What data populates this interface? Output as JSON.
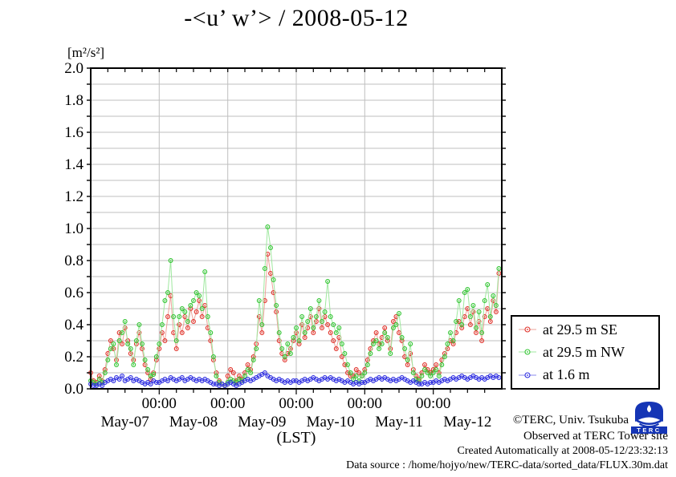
{
  "page": {
    "title": "-<u’ w’> / 2008-05-12"
  },
  "axes": {
    "unit_label": "[m²/s²]",
    "xlabel": "(LST)"
  },
  "legend": {
    "items": [
      {
        "label": "at 29.5 m SE",
        "marker_color": "#e03028",
        "line_color": "#eda39a"
      },
      {
        "label": "at 29.5 m NW",
        "marker_color": "#2fc42f",
        "line_color": "#9fe89f"
      },
      {
        "label": "at 1.6 m",
        "marker_color": "#2a2ae0",
        "line_color": "#8a8aee"
      }
    ]
  },
  "annotations": {
    "copyright": "©TERC, Univ. Tsukuba",
    "observed": "Observed at TERC Tower site",
    "created": "Created Automatically at 2008-05-12/23:32:13",
    "datasource": "Data source : /home/hojyo/new/TERC-data/sorted_data/FLUX.30m.dat"
  },
  "logo": {
    "text": "TERC",
    "color": "#1535b5"
  },
  "chart_data": {
    "type": "line",
    "title": "-<u' w'> / 2008-05-12",
    "ylabel": "[m2/s2]",
    "xlabel": "(LST)",
    "ylim": [
      0,
      2.0
    ],
    "ytick_step": 0.2,
    "yticks": [
      "0.0",
      "0.2",
      "0.4",
      "0.6",
      "0.8",
      "1.0",
      "1.2",
      "1.4",
      "1.6",
      "1.8",
      "2.0"
    ],
    "grid": true,
    "grid_color": "#bfbfbf",
    "x_unit": "hours since 2008-05-07 00:00 LST",
    "x_range_hours": [
      0,
      144
    ],
    "x_hours_step": 1,
    "xtick_minor_hours": 6,
    "time_tick_labels": [
      "00:00",
      "00:00",
      "00:00",
      "00:00",
      "00:00"
    ],
    "day_labels": [
      "May-07",
      "May-08",
      "May-09",
      "May-10",
      "May-11",
      "May-12"
    ],
    "legend_position": "outside-right-bottom",
    "series": [
      {
        "name": "at 29.5 m SE",
        "color": "#e03028",
        "line_color": "#eda39a",
        "values": [
          0.1,
          0.05,
          0.04,
          0.08,
          0.05,
          0.12,
          0.22,
          0.3,
          0.25,
          0.18,
          0.35,
          0.28,
          0.38,
          0.3,
          0.22,
          0.18,
          0.28,
          0.35,
          0.25,
          0.15,
          0.1,
          0.06,
          0.1,
          0.18,
          0.25,
          0.35,
          0.3,
          0.45,
          0.58,
          0.35,
          0.25,
          0.4,
          0.35,
          0.45,
          0.38,
          0.5,
          0.42,
          0.48,
          0.55,
          0.45,
          0.52,
          0.38,
          0.3,
          0.18,
          0.1,
          0.05,
          0.03,
          0.02,
          0.08,
          0.12,
          0.1,
          0.05,
          0.08,
          0.06,
          0.1,
          0.15,
          0.12,
          0.2,
          0.28,
          0.45,
          0.35,
          0.55,
          0.84,
          0.72,
          0.6,
          0.48,
          0.3,
          0.22,
          0.18,
          0.22,
          0.25,
          0.3,
          0.35,
          0.28,
          0.4,
          0.32,
          0.38,
          0.45,
          0.35,
          0.42,
          0.5,
          0.38,
          0.45,
          0.4,
          0.35,
          0.3,
          0.25,
          0.32,
          0.2,
          0.15,
          0.1,
          0.08,
          0.08,
          0.12,
          0.1,
          0.08,
          0.12,
          0.18,
          0.25,
          0.3,
          0.35,
          0.28,
          0.32,
          0.38,
          0.3,
          0.25,
          0.42,
          0.45,
          0.35,
          0.3,
          0.2,
          0.15,
          0.22,
          0.12,
          0.08,
          0.06,
          0.1,
          0.15,
          0.12,
          0.1,
          0.12,
          0.15,
          0.1,
          0.18,
          0.22,
          0.25,
          0.3,
          0.28,
          0.35,
          0.42,
          0.38,
          0.45,
          0.5,
          0.4,
          0.48,
          0.35,
          0.42,
          0.3,
          0.45,
          0.5,
          0.42,
          0.55,
          0.48,
          0.72
        ]
      },
      {
        "name": "at 29.5 m NW",
        "color": "#2fc42f",
        "line_color": "#9fe89f",
        "values": [
          0.05,
          0.04,
          0.03,
          0.06,
          0.04,
          0.1,
          0.18,
          0.25,
          0.28,
          0.15,
          0.3,
          0.35,
          0.42,
          0.28,
          0.25,
          0.15,
          0.3,
          0.4,
          0.28,
          0.18,
          0.12,
          0.08,
          0.09,
          0.2,
          0.28,
          0.4,
          0.55,
          0.6,
          0.8,
          0.45,
          0.3,
          0.45,
          0.5,
          0.48,
          0.42,
          0.52,
          0.55,
          0.6,
          0.58,
          0.5,
          0.73,
          0.45,
          0.35,
          0.2,
          0.08,
          0.04,
          0.03,
          0.02,
          0.04,
          0.06,
          0.05,
          0.04,
          0.06,
          0.05,
          0.08,
          0.12,
          0.1,
          0.18,
          0.25,
          0.55,
          0.4,
          0.75,
          1.01,
          0.88,
          0.68,
          0.52,
          0.35,
          0.25,
          0.2,
          0.28,
          0.22,
          0.32,
          0.38,
          0.3,
          0.45,
          0.35,
          0.42,
          0.5,
          0.38,
          0.45,
          0.55,
          0.42,
          0.48,
          0.67,
          0.45,
          0.4,
          0.35,
          0.38,
          0.28,
          0.22,
          0.15,
          0.1,
          0.06,
          0.08,
          0.05,
          0.08,
          0.1,
          0.15,
          0.22,
          0.28,
          0.3,
          0.25,
          0.28,
          0.35,
          0.32,
          0.22,
          0.38,
          0.4,
          0.47,
          0.32,
          0.25,
          0.18,
          0.28,
          0.1,
          0.06,
          0.05,
          0.08,
          0.12,
          0.1,
          0.08,
          0.1,
          0.12,
          0.08,
          0.15,
          0.2,
          0.28,
          0.35,
          0.3,
          0.42,
          0.55,
          0.4,
          0.6,
          0.62,
          0.45,
          0.52,
          0.38,
          0.48,
          0.35,
          0.55,
          0.65,
          0.45,
          0.58,
          0.52,
          0.75
        ]
      },
      {
        "name": "at 1.6 m",
        "color": "#2a2ae0",
        "line_color": "#8a8aee",
        "values": [
          0.03,
          0.02,
          0.02,
          0.03,
          0.02,
          0.04,
          0.05,
          0.06,
          0.05,
          0.07,
          0.06,
          0.08,
          0.05,
          0.06,
          0.07,
          0.05,
          0.06,
          0.05,
          0.04,
          0.03,
          0.04,
          0.03,
          0.05,
          0.04,
          0.04,
          0.05,
          0.06,
          0.05,
          0.07,
          0.06,
          0.05,
          0.06,
          0.07,
          0.05,
          0.06,
          0.07,
          0.06,
          0.05,
          0.06,
          0.05,
          0.06,
          0.05,
          0.04,
          0.03,
          0.03,
          0.02,
          0.03,
          0.02,
          0.03,
          0.04,
          0.03,
          0.02,
          0.03,
          0.04,
          0.05,
          0.06,
          0.05,
          0.06,
          0.07,
          0.08,
          0.09,
          0.1,
          0.08,
          0.07,
          0.06,
          0.05,
          0.06,
          0.05,
          0.04,
          0.05,
          0.04,
          0.05,
          0.05,
          0.04,
          0.05,
          0.06,
          0.05,
          0.06,
          0.07,
          0.06,
          0.05,
          0.06,
          0.07,
          0.06,
          0.07,
          0.06,
          0.05,
          0.06,
          0.05,
          0.04,
          0.05,
          0.04,
          0.03,
          0.04,
          0.03,
          0.04,
          0.04,
          0.05,
          0.06,
          0.05,
          0.06,
          0.07,
          0.06,
          0.07,
          0.06,
          0.05,
          0.06,
          0.05,
          0.06,
          0.07,
          0.06,
          0.05,
          0.04,
          0.05,
          0.04,
          0.03,
          0.03,
          0.04,
          0.03,
          0.04,
          0.04,
          0.05,
          0.04,
          0.05,
          0.06,
          0.05,
          0.06,
          0.07,
          0.06,
          0.07,
          0.08,
          0.07,
          0.06,
          0.07,
          0.08,
          0.07,
          0.06,
          0.07,
          0.06,
          0.07,
          0.08,
          0.07,
          0.08,
          0.07
        ]
      }
    ]
  }
}
